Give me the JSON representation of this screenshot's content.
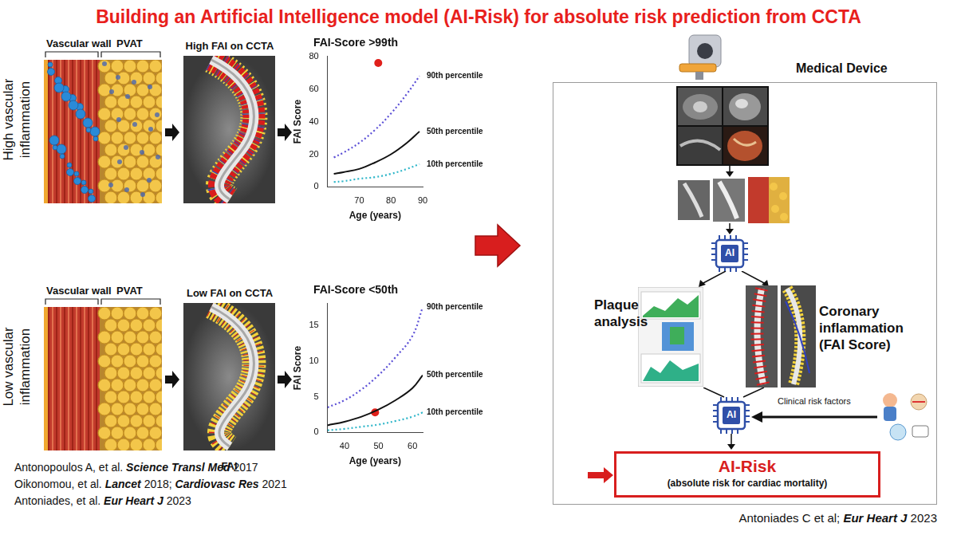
{
  "title": "Building an Artificial Intelligence model (AI-Risk) for absolute risk prediction from CCTA",
  "rows": [
    {
      "label": [
        "High vascular",
        "inflammation"
      ],
      "wall_label": "Vascular wall",
      "pvat_label": "PVAT",
      "ccta_label": "High FAI on CCTA"
    },
    {
      "label": [
        "Low vascular",
        "inflammation"
      ],
      "wall_label": "Vascular wall",
      "pvat_label": "PVAT",
      "ccta_label": "Low FAI on CCTA",
      "ccta_caption": "FAI"
    }
  ],
  "chart_data": [
    {
      "type": "line",
      "title": "FAI-Score >99th",
      "x_label": "Age (years)",
      "y_label": "FAI Score",
      "x": [
        62,
        65,
        70,
        75,
        80,
        85,
        89
      ],
      "series": [
        {
          "name": "90th percentile",
          "color": "#5b4fd6",
          "line_style": "dotted",
          "marker": "none",
          "values": [
            18,
            21,
            27,
            35,
            45,
            57,
            68
          ]
        },
        {
          "name": "50th percentile",
          "color": "#111111",
          "line_style": "solid",
          "marker": "none",
          "values": [
            8,
            9,
            11,
            15,
            20,
            27,
            34
          ]
        },
        {
          "name": "10th percentile",
          "color": "#2fb6c9",
          "line_style": "dotted",
          "marker": "none",
          "values": [
            3,
            3.5,
            5,
            6,
            8,
            11,
            14
          ]
        },
        {
          "type": "scatter",
          "color": "#e0201b",
          "marker": "circle",
          "x": [
            76
          ],
          "values": [
            76
          ]
        }
      ],
      "xlim": [
        60,
        90
      ],
      "xticks": [
        70,
        80,
        90
      ],
      "ylim": [
        0,
        80
      ],
      "yticks": [
        0,
        20,
        40,
        60,
        80
      ],
      "grid": false
    },
    {
      "type": "line",
      "title": "FAI-Score <50th",
      "x_label": "Age (years)",
      "y_label": "FAI Score",
      "x": [
        35,
        40,
        45,
        50,
        55,
        60,
        63
      ],
      "series": [
        {
          "name": "90th percentile",
          "color": "#5b4fd6",
          "line_style": "dotted",
          "marker": "none",
          "values": [
            3.5,
            4.5,
            6,
            8,
            10.5,
            13.5,
            17.5
          ]
        },
        {
          "name": "50th percentile",
          "color": "#111111",
          "line_style": "solid",
          "marker": "none",
          "values": [
            1,
            1.5,
            2.2,
            3.2,
            4.5,
            6.2,
            8
          ]
        },
        {
          "name": "10th percentile",
          "color": "#2fb6c9",
          "line_style": "dotted",
          "marker": "none",
          "values": [
            0.3,
            0.5,
            0.8,
            1.1,
            1.6,
            2.2,
            2.8
          ]
        },
        {
          "type": "scatter",
          "color": "#e0201b",
          "marker": "circle",
          "x": [
            49
          ],
          "values": [
            2.8
          ]
        }
      ],
      "xlim": [
        35,
        63
      ],
      "xticks": [
        40,
        50,
        60
      ],
      "ylim": [
        0,
        18
      ],
      "yticks": [
        0,
        5,
        10,
        15
      ],
      "grid": false
    }
  ],
  "references": [
    [
      "Antonopoulos A, et al. ",
      "Science Transl Med",
      "  2017"
    ],
    [
      "Oikonomou, et al. ",
      "Lancet",
      " 2018; ",
      "Cardiovasc Res",
      " 2021"
    ],
    [
      " Antoniades, et al. ",
      "Eur Heart J",
      " 2023"
    ]
  ],
  "right_panel": {
    "device_label": "Medical Device",
    "chip_label": "AI",
    "plaque_label": [
      "Plaque",
      "analysis"
    ],
    "inflammation_label": [
      "Coronary",
      "inflammation",
      "(FAI Score)"
    ],
    "clinical_label": "Clinical risk factors",
    "output_title": "AI-Risk",
    "output_subtitle": "(absolute risk for cardiac mortality)",
    "source": [
      "Antoniades C et al; ",
      "Eur Heart J",
      " 2023"
    ]
  }
}
